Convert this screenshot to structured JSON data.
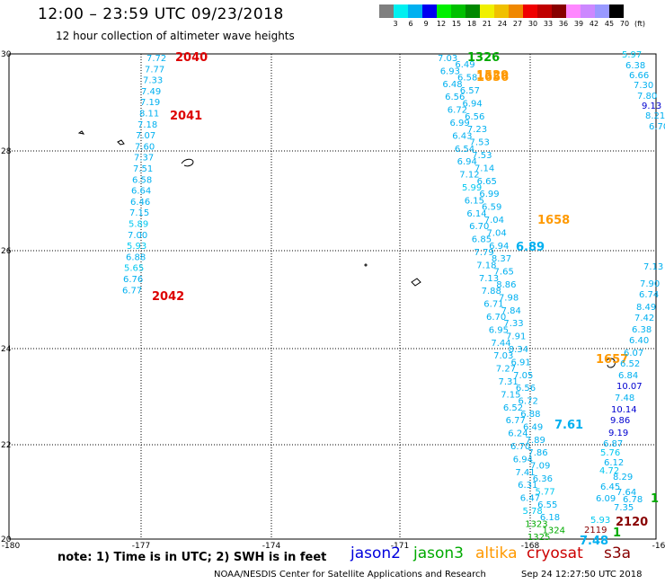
{
  "title": "12:00 – 23:59 UTC 09/23/2018",
  "subtitle": "12 hour collection of altimeter wave heights",
  "color_scale": {
    "unit_label": "(ft)",
    "ticks": [
      "3",
      "6",
      "9",
      "12",
      "15",
      "18",
      "21",
      "24",
      "27",
      "30",
      "33",
      "36",
      "39",
      "42",
      "45",
      "70"
    ],
    "colors": [
      "#7f7f7f",
      "#00f0f0",
      "#00b0f0",
      "#0000f0",
      "#00f000",
      "#00c000",
      "#008800",
      "#f0f000",
      "#f0c000",
      "#f08800",
      "#f00000",
      "#c00000",
      "#880000",
      "#ff88ff",
      "#cc88ff",
      "#9999ff",
      "#000000"
    ]
  },
  "axes": {
    "lat_labels": [
      "30",
      "28",
      "26",
      "24",
      "22",
      "20"
    ],
    "lon_labels": [
      "-180",
      "-177",
      "-174",
      "-171",
      "-168",
      "-16"
    ]
  },
  "footer": {
    "note": "note: 1) Time is in UTC; 2) SWH is in feet",
    "missions": [
      {
        "name": "jason2",
        "color": "#0000dd"
      },
      {
        "name": "jason3",
        "color": "#00aa00"
      },
      {
        "name": "altika",
        "color": "#ff9900"
      },
      {
        "name": "cryosat",
        "color": "#cc0000"
      },
      {
        "name": "s3a",
        "color": "#880000"
      }
    ],
    "credit": "NOAA/NESDIS Center for Satellite Applications and Research",
    "timestamp": "Sep 24 12:27:50 UTC 2018"
  },
  "map": {
    "labels": [
      {
        "t": "7.72",
        "c": "#00b0f0"
      },
      {
        "t": "7.77",
        "c": "#00b0f0"
      },
      {
        "t": "7.33",
        "c": "#00b0f0"
      },
      {
        "t": "7.49",
        "c": "#00b0f0"
      },
      {
        "t": "7.19",
        "c": "#00b0f0"
      },
      {
        "t": "8.11",
        "c": "#00b0f0"
      },
      {
        "t": "7.18",
        "c": "#00b0f0"
      },
      {
        "t": "7.07",
        "c": "#00b0f0"
      },
      {
        "t": "7.60",
        "c": "#00b0f0"
      },
      {
        "t": "7.37",
        "c": "#00b0f0"
      },
      {
        "t": "7.51",
        "c": "#00b0f0"
      },
      {
        "t": "6.58",
        "c": "#00b0f0"
      },
      {
        "t": "6.64",
        "c": "#00b0f0"
      },
      {
        "t": "6.46",
        "c": "#00b0f0"
      },
      {
        "t": "7.15",
        "c": "#00b0f0"
      },
      {
        "t": "5.89",
        "c": "#00c8f0"
      },
      {
        "t": "7.00",
        "c": "#00b0f0"
      },
      {
        "t": "5.93",
        "c": "#00c8f0"
      },
      {
        "t": "6.88",
        "c": "#00b0f0"
      },
      {
        "t": "5.65",
        "c": "#00c8f0"
      },
      {
        "t": "6.76",
        "c": "#00b0f0"
      },
      {
        "t": "6.77",
        "c": "#00b0f0"
      },
      {
        "t": "2040",
        "c": "#dd0000"
      },
      {
        "t": "2041",
        "c": "#dd0000"
      },
      {
        "t": "2042",
        "c": "#dd0000"
      },
      {
        "t": "7.03",
        "c": "#00b0f0"
      },
      {
        "t": "6.49",
        "c": "#00b0f0"
      },
      {
        "t": "6.93",
        "c": "#00b0f0"
      },
      {
        "t": "6.58",
        "c": "#00b0f0"
      },
      {
        "t": "6.48",
        "c": "#00b0f0"
      },
      {
        "t": "6.57",
        "c": "#00b0f0"
      },
      {
        "t": "6.56",
        "c": "#00b0f0"
      },
      {
        "t": "6.94",
        "c": "#00b0f0"
      },
      {
        "t": "6.72",
        "c": "#00b0f0"
      },
      {
        "t": "6.56",
        "c": "#00b0f0"
      },
      {
        "t": "6.99",
        "c": "#00b0f0"
      },
      {
        "t": "7.23",
        "c": "#00b0f0"
      },
      {
        "t": "6.43",
        "c": "#00b0f0"
      },
      {
        "t": "7.53",
        "c": "#00b0f0"
      },
      {
        "t": "6.54",
        "c": "#00b0f0"
      },
      {
        "t": "7.53",
        "c": "#00b0f0"
      },
      {
        "t": "6.94",
        "c": "#00b0f0"
      },
      {
        "t": "7.14",
        "c": "#00b0f0"
      },
      {
        "t": "7.12",
        "c": "#00b0f0"
      },
      {
        "t": "6.65",
        "c": "#00b0f0"
      },
      {
        "t": "5.99",
        "c": "#00c8f0"
      },
      {
        "t": "6.99",
        "c": "#00b0f0"
      },
      {
        "t": "6.15",
        "c": "#00b0f0"
      },
      {
        "t": "6.59",
        "c": "#00b0f0"
      },
      {
        "t": "6.14",
        "c": "#00b0f0"
      },
      {
        "t": "7.04",
        "c": "#00b0f0"
      },
      {
        "t": "6.70",
        "c": "#00b0f0"
      },
      {
        "t": "7.04",
        "c": "#00b0f0"
      },
      {
        "t": "6.85",
        "c": "#00b0f0"
      },
      {
        "t": "6.94",
        "c": "#00b0f0"
      },
      {
        "t": "7.79",
        "c": "#00b0f0"
      },
      {
        "t": "8.37",
        "c": "#00b0f0"
      },
      {
        "t": "7.18",
        "c": "#00b0f0"
      },
      {
        "t": "7.65",
        "c": "#00b0f0"
      },
      {
        "t": "7.13",
        "c": "#00b0f0"
      },
      {
        "t": "8.86",
        "c": "#00b0f0"
      },
      {
        "t": "7.88",
        "c": "#00b0f0"
      },
      {
        "t": "7.98",
        "c": "#00b0f0"
      },
      {
        "t": "6.71",
        "c": "#00b0f0"
      },
      {
        "t": "7.84",
        "c": "#00b0f0"
      },
      {
        "t": "6.70",
        "c": "#00b0f0"
      },
      {
        "t": "7.33",
        "c": "#00b0f0"
      },
      {
        "t": "6.95",
        "c": "#00b0f0"
      },
      {
        "t": "7.91",
        "c": "#00b0f0"
      },
      {
        "t": "7.44",
        "c": "#00b0f0"
      },
      {
        "t": "8.34",
        "c": "#00b0f0"
      },
      {
        "t": "7.03",
        "c": "#00b0f0"
      },
      {
        "t": "6.91",
        "c": "#00b0f0"
      },
      {
        "t": "7.27",
        "c": "#00b0f0"
      },
      {
        "t": "7.05",
        "c": "#00b0f0"
      },
      {
        "t": "7.31",
        "c": "#00b0f0"
      },
      {
        "t": "6.56",
        "c": "#00b0f0"
      },
      {
        "t": "7.15",
        "c": "#00b0f0"
      },
      {
        "t": "6.72",
        "c": "#00b0f0"
      },
      {
        "t": "6.52",
        "c": "#00b0f0"
      },
      {
        "t": "6.88",
        "c": "#00b0f0"
      },
      {
        "t": "6.77",
        "c": "#00b0f0"
      },
      {
        "t": "6.49",
        "c": "#00b0f0"
      },
      {
        "t": "6.24",
        "c": "#00b0f0"
      },
      {
        "t": "7.89",
        "c": "#00b0f0"
      },
      {
        "t": "6.70",
        "c": "#00b0f0"
      },
      {
        "t": "7.86",
        "c": "#00b0f0"
      },
      {
        "t": "6.94",
        "c": "#00b0f0"
      },
      {
        "t": "7.09",
        "c": "#00b0f0"
      },
      {
        "t": "7.41",
        "c": "#00b0f0"
      },
      {
        "t": "6.36",
        "c": "#00b0f0"
      },
      {
        "t": "6.31",
        "c": "#00b0f0"
      },
      {
        "t": "5.77",
        "c": "#00c8f0"
      },
      {
        "t": "6.47",
        "c": "#00b0f0"
      },
      {
        "t": "6.55",
        "c": "#00b0f0"
      },
      {
        "t": "5.78",
        "c": "#00c8f0"
      },
      {
        "t": "6.18",
        "c": "#00b0f0"
      },
      {
        "t": "1323",
        "c": "#00aa00"
      },
      {
        "t": "1324",
        "c": "#00aa00"
      },
      {
        "t": "1325",
        "c": "#00aa00"
      },
      {
        "t": "1326",
        "c": "#00aa00"
      },
      {
        "t": "1529",
        "c": "#ff9900"
      },
      {
        "t": "1658",
        "c": "#ff9900"
      },
      {
        "t": "1657",
        "c": "#ff9900"
      },
      {
        "t": "1656",
        "c": "#ff9900"
      },
      {
        "t": "6.89",
        "c": "#00b0f0"
      },
      {
        "t": "7.61",
        "c": "#00b0f0"
      },
      {
        "t": "7.48",
        "c": "#00b0f0"
      },
      {
        "t": "5.97",
        "c": "#00c8f0"
      },
      {
        "t": "6.38",
        "c": "#00b0f0"
      },
      {
        "t": "6.66",
        "c": "#00b0f0"
      },
      {
        "t": "7.30",
        "c": "#00b0f0"
      },
      {
        "t": "7.80",
        "c": "#00b0f0"
      },
      {
        "t": "9.13",
        "c": "#0000d0"
      },
      {
        "t": "8.21",
        "c": "#00b0f0"
      },
      {
        "t": "6.70",
        "c": "#00b0f0"
      },
      {
        "t": "7.13",
        "c": "#00b0f0"
      },
      {
        "t": "7.90",
        "c": "#00b0f0"
      },
      {
        "t": "6.74",
        "c": "#00b0f0"
      },
      {
        "t": "8.49",
        "c": "#00b0f0"
      },
      {
        "t": "7.42",
        "c": "#00b0f0"
      },
      {
        "t": "6.38",
        "c": "#00b0f0"
      },
      {
        "t": "6.40",
        "c": "#00b0f0"
      },
      {
        "t": "6.07",
        "c": "#00b0f0"
      },
      {
        "t": "6.52",
        "c": "#00b0f0"
      },
      {
        "t": "6.84",
        "c": "#00b0f0"
      },
      {
        "t": "10.07",
        "c": "#0000d0"
      },
      {
        "t": "7.48",
        "c": "#00b0f0"
      },
      {
        "t": "10.14",
        "c": "#0000d0"
      },
      {
        "t": "9.86",
        "c": "#0000d0"
      },
      {
        "t": "9.19",
        "c": "#0000d0"
      },
      {
        "t": "6.87",
        "c": "#00b0f0"
      },
      {
        "t": "5.76",
        "c": "#00c8f0"
      },
      {
        "t": "6.12",
        "c": "#00b0f0"
      },
      {
        "t": "4.72",
        "c": "#00c8f0"
      },
      {
        "t": "8.29",
        "c": "#00b0f0"
      },
      {
        "t": "6.45",
        "c": "#00b0f0"
      },
      {
        "t": "7.64",
        "c": "#00b0f0"
      },
      {
        "t": "6.09",
        "c": "#00b0f0"
      },
      {
        "t": "6.78",
        "c": "#00b0f0"
      },
      {
        "t": "7.35",
        "c": "#00b0f0"
      },
      {
        "t": "5.93",
        "c": "#00c8f0"
      },
      {
        "t": "2119",
        "c": "#880000"
      },
      {
        "t": "2120",
        "c": "#880000"
      },
      {
        "t": "1",
        "c": "#00aa00"
      },
      {
        "t": "1",
        "c": "#00aa00"
      }
    ]
  }
}
